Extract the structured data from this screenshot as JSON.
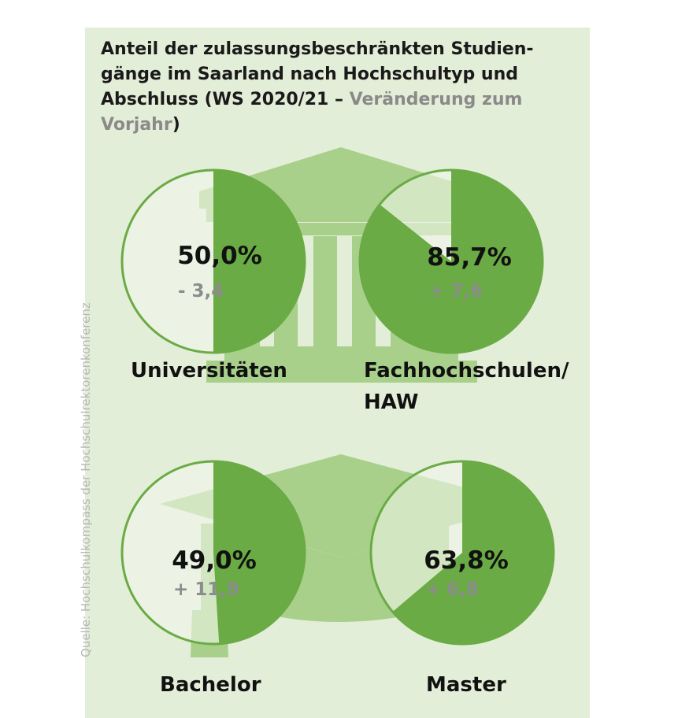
{
  "title": {
    "main": "Anteil der zulassungsbeschränkten Studien-gänge im Saarland nach Hochschultyp und Abschluss (WS 2020/21 – ",
    "highlight": "Veränderung zum Vorjahr",
    "end": ")"
  },
  "source": "Quelle: Hochschulkompass der Hochschulrektorenkonferenz",
  "colors": {
    "panel": "#e3eed8",
    "slice": "#6aab45",
    "outline": "#6aab45",
    "rest": "#f4f8ef",
    "icon": "#a8d08a",
    "change": "#8c8c8c"
  },
  "chart_data": [
    {
      "type": "pie",
      "label": "Universitäten",
      "value": 50.0,
      "value_label": "50,0%",
      "change_label": "- 3,4"
    },
    {
      "type": "pie",
      "label": "Fachhochschulen/ HAW",
      "label_lines": [
        "Fachhochschulen/",
        "HAW"
      ],
      "value": 85.7,
      "value_label": "85,7%",
      "change_label": "+ 7,6"
    },
    {
      "type": "pie",
      "label": "Bachelor",
      "value": 49.0,
      "value_label": "49,0%",
      "change_label": "+ 11,9"
    },
    {
      "type": "pie",
      "label": "Master",
      "value": 63.8,
      "value_label": "63,8%",
      "change_label": "+ 6,8"
    }
  ]
}
